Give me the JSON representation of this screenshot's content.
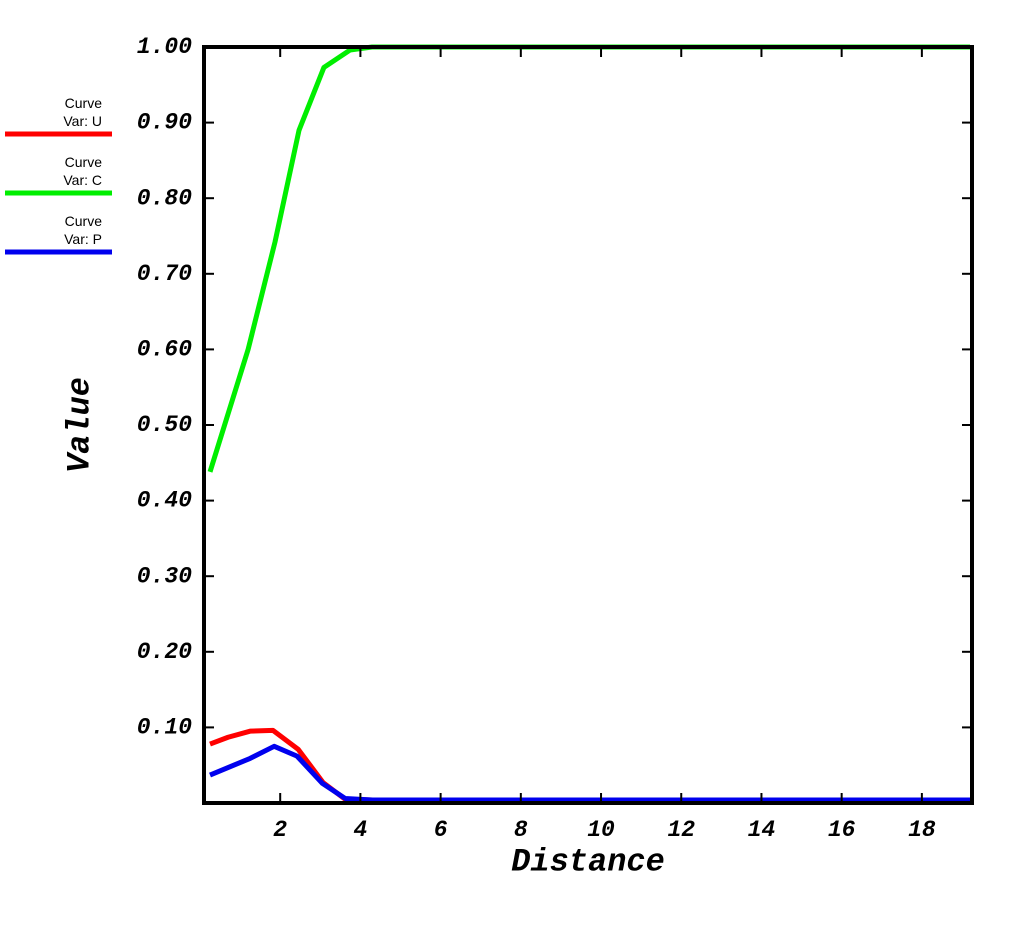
{
  "chart_data": {
    "type": "line",
    "xlabel": "Distance",
    "ylabel": "Value",
    "xlim": [
      0.1,
      19.25
    ],
    "ylim": [
      0,
      1.0
    ],
    "xticks": [
      2,
      4,
      6,
      8,
      10,
      12,
      14,
      16,
      18
    ],
    "yticks": [
      {
        "value": 0.1,
        "label": "0.10"
      },
      {
        "value": 0.2,
        "label": "0.20"
      },
      {
        "value": 0.3,
        "label": "0.30"
      },
      {
        "value": 0.4,
        "label": "0.40"
      },
      {
        "value": 0.5,
        "label": "0.50"
      },
      {
        "value": 0.6,
        "label": "0.60"
      },
      {
        "value": 0.7,
        "label": "0.70"
      },
      {
        "value": 0.8,
        "label": "0.80"
      },
      {
        "value": 0.9,
        "label": "0.90"
      },
      {
        "value": 1.0,
        "label": "1.00"
      }
    ],
    "series": [
      {
        "name": "Curve",
        "var": "Var: U",
        "color": "#ff0000",
        "x": [
          0.25,
          0.7,
          1.25,
          1.82,
          2.45,
          3.07,
          3.62,
          4.3,
          19.2
        ],
        "values": [
          0.078,
          0.087,
          0.095,
          0.096,
          0.071,
          0.027,
          0.005,
          0.004,
          0.004
        ]
      },
      {
        "name": "Curve",
        "var": "Var: C",
        "color": "#00ee00",
        "x": [
          0.25,
          1.2,
          1.87,
          2.47,
          3.09,
          3.74,
          4.29,
          19.2
        ],
        "values": [
          0.438,
          0.6,
          0.742,
          0.89,
          0.973,
          0.996,
          1.0,
          1.0
        ]
      },
      {
        "name": "Curve",
        "var": "Var: P",
        "color": "#0000ee",
        "x": [
          0.25,
          1.25,
          1.85,
          2.42,
          3.05,
          3.62,
          4.3,
          19.2
        ],
        "values": [
          0.037,
          0.059,
          0.075,
          0.062,
          0.026,
          0.006,
          0.004,
          0.004
        ]
      }
    ]
  }
}
